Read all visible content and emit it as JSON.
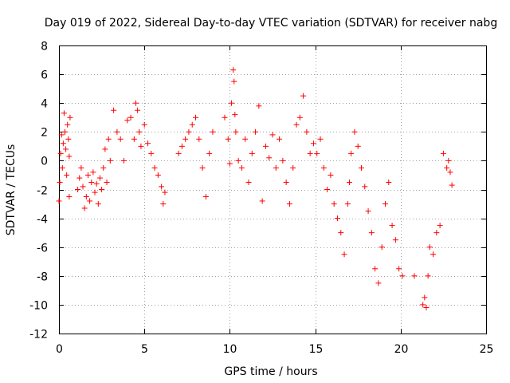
{
  "chart_data": {
    "type": "scatter",
    "title": "Day 019 of 2022, Sidereal Day-to-day VTEC variation (SDTVAR) for receiver nabg",
    "xlabel": "GPS time / hours",
    "ylabel": "SDTVAR / TECUs",
    "xlim": [
      0,
      25
    ],
    "ylim": [
      -12,
      8
    ],
    "xticks": [
      "0",
      "5",
      "10",
      "15",
      "20",
      "25"
    ],
    "yticks": [
      "8",
      "6",
      "4",
      "2",
      "0",
      "-2",
      "-4",
      "-6",
      "-8",
      "-10",
      "-12"
    ],
    "grid": true,
    "marker": "+",
    "color": "#ff0000",
    "series": [
      {
        "name": "SDTVAR",
        "x": [
          0.0,
          0.05,
          0.1,
          0.15,
          0.2,
          0.25,
          0.3,
          0.35,
          0.4,
          0.45,
          0.5,
          0.55,
          0.6,
          0.6,
          0.65,
          1.1,
          1.2,
          1.3,
          1.4,
          1.5,
          1.6,
          1.7,
          1.8,
          1.9,
          2.0,
          2.1,
          2.2,
          2.3,
          2.4,
          2.5,
          2.6,
          2.7,
          2.8,
          2.9,
          3.0,
          3.2,
          3.4,
          3.6,
          3.8,
          4.0,
          4.2,
          4.4,
          4.5,
          4.6,
          4.7,
          4.8,
          5.0,
          5.2,
          5.4,
          5.6,
          5.8,
          6.0,
          6.1,
          6.2,
          7.0,
          7.2,
          7.4,
          7.6,
          7.8,
          8.0,
          8.2,
          8.4,
          8.6,
          8.8,
          9.0,
          9.7,
          9.9,
          10.0,
          10.1,
          10.2,
          10.25,
          10.3,
          10.35,
          10.5,
          10.7,
          10.9,
          11.1,
          11.3,
          11.5,
          11.7,
          11.9,
          12.1,
          12.3,
          12.5,
          12.7,
          12.9,
          13.1,
          13.3,
          13.5,
          13.7,
          13.9,
          14.1,
          14.3,
          14.5,
          14.7,
          14.9,
          15.1,
          15.3,
          15.5,
          15.7,
          15.9,
          16.1,
          16.3,
          16.5,
          16.7,
          16.9,
          17.0,
          17.1,
          17.3,
          17.5,
          17.7,
          17.9,
          18.1,
          18.3,
          18.5,
          18.7,
          18.9,
          19.1,
          19.3,
          19.5,
          19.7,
          19.9,
          20.1,
          20.8,
          21.3,
          21.4,
          21.5,
          21.6,
          21.7,
          21.9,
          22.1,
          22.3,
          22.5,
          22.7,
          22.8,
          22.9,
          23.0
        ],
        "y": [
          -2.8,
          -1.5,
          0.5,
          1.8,
          -0.5,
          1.2,
          3.3,
          2.0,
          0.8,
          -1.0,
          2.5,
          1.5,
          -2.5,
          0.3,
          3.0,
          -2.0,
          -1.2,
          -0.5,
          -1.8,
          -3.3,
          -2.5,
          -1.0,
          -2.8,
          -1.5,
          -0.8,
          -2.2,
          -1.6,
          -3.0,
          -1.2,
          -2.0,
          -0.5,
          0.8,
          -1.5,
          1.5,
          0.0,
          3.5,
          2.0,
          1.5,
          0.0,
          2.8,
          3.0,
          1.5,
          4.0,
          3.5,
          2.0,
          1.0,
          2.5,
          1.2,
          0.5,
          -0.5,
          -1.0,
          -1.8,
          -3.0,
          -2.2,
          0.5,
          1.0,
          1.5,
          2.0,
          2.5,
          3.0,
          1.5,
          -0.5,
          -2.5,
          0.5,
          2.0,
          3.0,
          1.5,
          -0.2,
          4.0,
          6.3,
          5.5,
          3.2,
          2.0,
          0.0,
          -0.5,
          1.5,
          -1.5,
          0.5,
          2.0,
          3.8,
          -2.8,
          1.0,
          0.2,
          1.8,
          -0.5,
          1.5,
          0.0,
          -1.5,
          -3.0,
          -0.5,
          2.5,
          3.0,
          4.5,
          2.0,
          0.5,
          1.2,
          0.5,
          1.5,
          -0.5,
          -2.0,
          -1.0,
          -3.0,
          -4.0,
          -5.0,
          -6.5,
          -3.0,
          -1.5,
          0.5,
          2.0,
          1.0,
          -0.5,
          -1.8,
          -3.5,
          -5.0,
          -7.5,
          -8.5,
          -6.0,
          -3.0,
          -1.5,
          -4.5,
          -5.5,
          -7.5,
          -8.0,
          -8.0,
          -10.0,
          -9.5,
          -10.2,
          -8.0,
          -6.0,
          -6.5,
          -5.0,
          -4.5,
          0.5,
          -0.5,
          0.0,
          -0.8,
          -1.7
        ]
      }
    ]
  }
}
